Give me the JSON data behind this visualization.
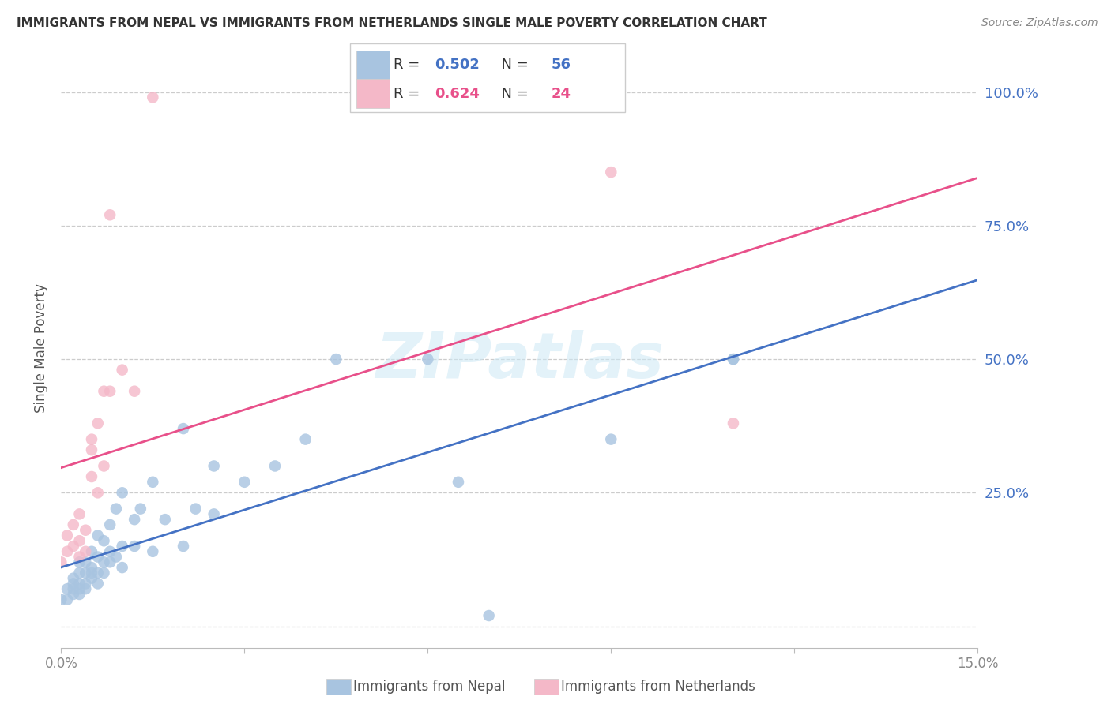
{
  "title": "IMMIGRANTS FROM NEPAL VS IMMIGRANTS FROM NETHERLANDS SINGLE MALE POVERTY CORRELATION CHART",
  "source": "Source: ZipAtlas.com",
  "ylabel": "Single Male Poverty",
  "xlim": [
    0.0,
    0.15
  ],
  "ylim": [
    -0.04,
    1.08
  ],
  "ytick_vals": [
    0.0,
    0.25,
    0.5,
    0.75,
    1.0
  ],
  "ytick_labels_right": [
    "",
    "25.0%",
    "50.0%",
    "75.0%",
    "100.0%"
  ],
  "xtick_vals": [
    0.0,
    0.03,
    0.06,
    0.09,
    0.12,
    0.15
  ],
  "xtick_labels": [
    "0.0%",
    "",
    "",
    "",
    "",
    "15.0%"
  ],
  "nepal_R": 0.502,
  "nepal_N": 56,
  "netherlands_R": 0.624,
  "netherlands_N": 24,
  "nepal_scatter_color": "#a8c4e0",
  "netherlands_scatter_color": "#f4b8c8",
  "nepal_line_color": "#4472c4",
  "netherlands_line_color": "#e8508a",
  "legend_text_color": "#4472c4",
  "watermark_color": "#cce8f5",
  "watermark": "ZIPatlas",
  "nepal_x": [
    0.0,
    0.001,
    0.001,
    0.002,
    0.002,
    0.002,
    0.002,
    0.003,
    0.003,
    0.003,
    0.003,
    0.003,
    0.004,
    0.004,
    0.004,
    0.004,
    0.005,
    0.005,
    0.005,
    0.005,
    0.006,
    0.006,
    0.006,
    0.006,
    0.007,
    0.007,
    0.007,
    0.008,
    0.008,
    0.008,
    0.009,
    0.009,
    0.01,
    0.01,
    0.01,
    0.012,
    0.012,
    0.013,
    0.015,
    0.015,
    0.017,
    0.02,
    0.02,
    0.022,
    0.025,
    0.025,
    0.03,
    0.035,
    0.04,
    0.045,
    0.06,
    0.065,
    0.07,
    0.09,
    0.11,
    0.11
  ],
  "nepal_y": [
    0.05,
    0.05,
    0.07,
    0.08,
    0.06,
    0.07,
    0.09,
    0.08,
    0.06,
    0.07,
    0.1,
    0.12,
    0.07,
    0.08,
    0.1,
    0.12,
    0.09,
    0.1,
    0.11,
    0.14,
    0.08,
    0.1,
    0.13,
    0.17,
    0.1,
    0.12,
    0.16,
    0.12,
    0.14,
    0.19,
    0.13,
    0.22,
    0.11,
    0.15,
    0.25,
    0.15,
    0.2,
    0.22,
    0.14,
    0.27,
    0.2,
    0.15,
    0.37,
    0.22,
    0.21,
    0.3,
    0.27,
    0.3,
    0.35,
    0.5,
    0.5,
    0.27,
    0.02,
    0.35,
    0.5,
    0.5
  ],
  "netherlands_x": [
    0.0,
    0.001,
    0.001,
    0.002,
    0.002,
    0.003,
    0.003,
    0.003,
    0.004,
    0.004,
    0.005,
    0.005,
    0.005,
    0.006,
    0.006,
    0.007,
    0.007,
    0.008,
    0.008,
    0.01,
    0.012,
    0.015,
    0.09,
    0.11
  ],
  "netherlands_y": [
    0.12,
    0.14,
    0.17,
    0.15,
    0.19,
    0.13,
    0.16,
    0.21,
    0.14,
    0.18,
    0.28,
    0.33,
    0.35,
    0.25,
    0.38,
    0.3,
    0.44,
    0.44,
    0.77,
    0.48,
    0.44,
    0.99,
    0.85,
    0.38
  ],
  "bottom_label_nepal": "Immigrants from Nepal",
  "bottom_label_netherlands": "Immigrants from Netherlands"
}
